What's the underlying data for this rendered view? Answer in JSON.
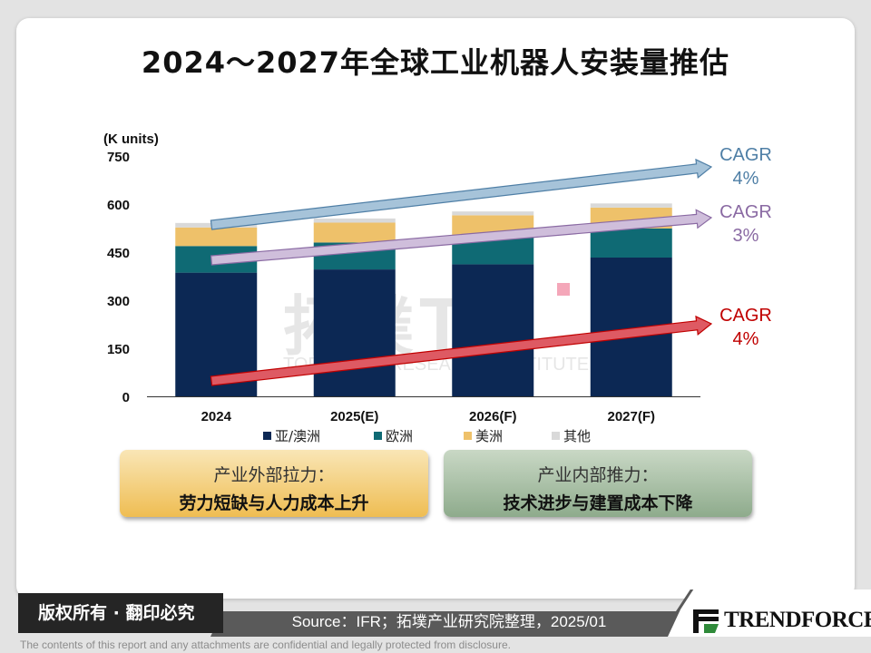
{
  "title": "2024～2027年全球工业机器人安装量推估",
  "chart_data": {
    "type": "bar",
    "stacked": true,
    "unit_label": "(K units)",
    "categories": [
      "2024",
      "2025(E)",
      "2026(F)",
      "2027(F)"
    ],
    "ylim": [
      0,
      750
    ],
    "yticks": [
      0,
      150,
      300,
      450,
      600,
      750
    ],
    "grid": false,
    "legend_position": "bottom",
    "series": [
      {
        "name": "亚/澳洲",
        "color": "#0c2854",
        "values": [
          386,
          396,
          412,
          433
        ]
      },
      {
        "name": "欧洲",
        "color": "#0f6a74",
        "values": [
          83,
          84,
          88,
          91
        ]
      },
      {
        "name": "美洲",
        "color": "#eec16a",
        "values": [
          58,
          62,
          65,
          65
        ]
      },
      {
        "name": "其他",
        "color": "#d9d9d9",
        "values": [
          14,
          13,
          12,
          13
        ]
      }
    ],
    "annotations": [
      {
        "label": "CAGR",
        "value": "4%",
        "color": "#4f7fa6",
        "arrow_color": "#a6c3d9"
      },
      {
        "label": "CAGR",
        "value": "3%",
        "color": "#8a6aa3",
        "arrow_color": "#cfbedb"
      },
      {
        "label": "CAGR",
        "value": "4%",
        "color": "#c00000",
        "arrow_color": "#de5a63"
      }
    ]
  },
  "boxes": {
    "external": {
      "line1": "产业外部拉力：",
      "line2": "劳力短缺与人力成本上升"
    },
    "internal": {
      "line1": "产业内部推力：",
      "line2": "技术进步与建置成本下降"
    }
  },
  "watermark": {
    "name": "拓墣",
    "sub": "TOPOLOGY RESEARCH INSTITUTE"
  },
  "footer": {
    "copyright": "版权所有 · 翻印必究",
    "source": "Source：IFR；拓墣产业研究院整理，2025/01",
    "logo": "TRENDFORCE",
    "disclaimer": "The contents of this report and any attachments are confidential and legally protected from disclosure."
  }
}
